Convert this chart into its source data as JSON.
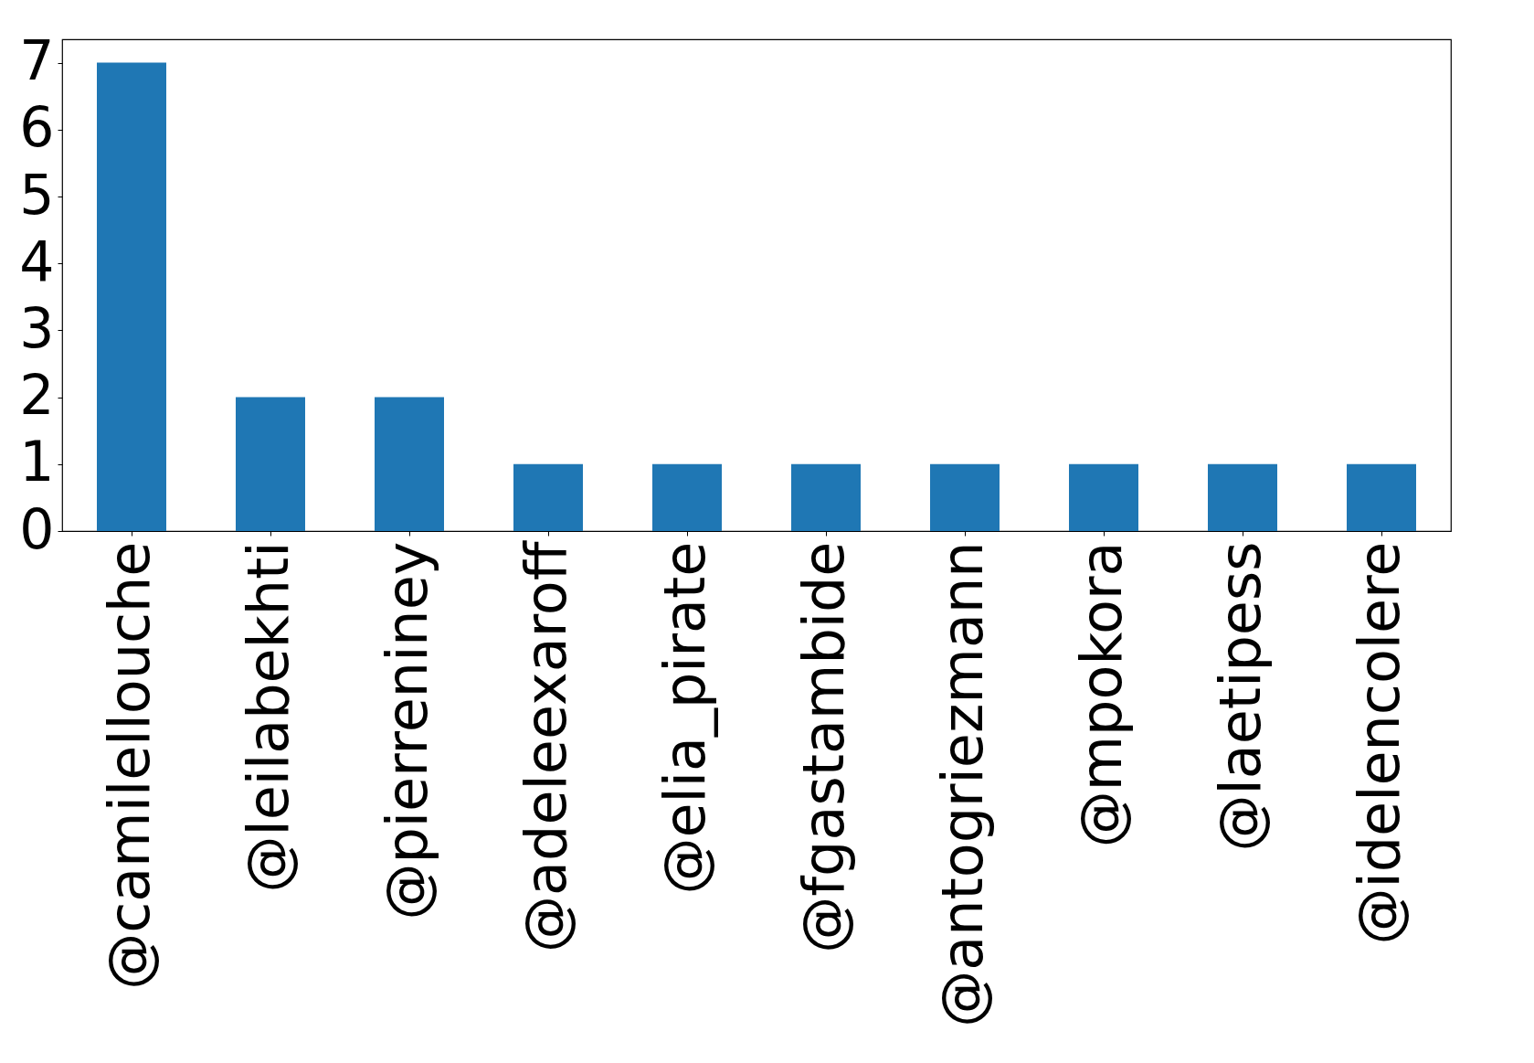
{
  "chart_data": {
    "type": "bar",
    "categories": [
      "@camilellouche",
      "@leilabekhti",
      "@pierreniney",
      "@adeleexaroff",
      "@elia_pirate",
      "@fgastambide",
      "@antogriezmann",
      "@mpokora",
      "@laetipess",
      "@idelencolere"
    ],
    "values": [
      7,
      2,
      2,
      1,
      1,
      1,
      1,
      1,
      1,
      1
    ],
    "color": "#1f77b4",
    "ylim": [
      0,
      7.35
    ],
    "yticks": [
      0,
      1,
      2,
      3,
      4,
      5,
      6,
      7
    ],
    "grid": false
  }
}
